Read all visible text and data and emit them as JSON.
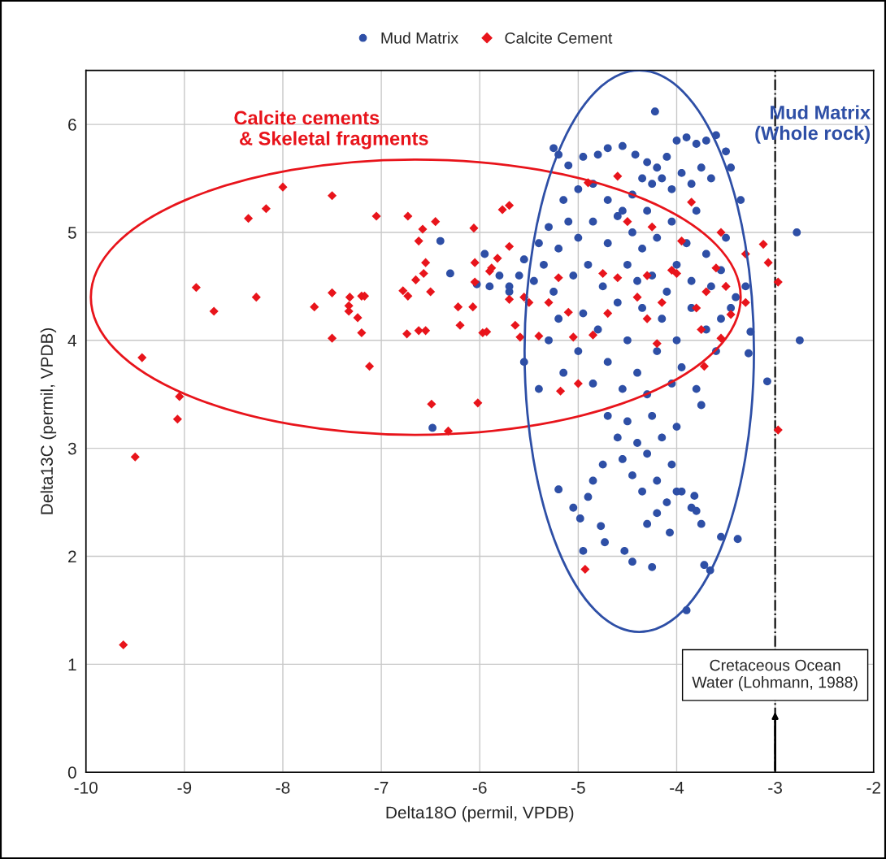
{
  "chart_data": {
    "type": "scatter",
    "xlabel": "Delta18O (permil, VPDB)",
    "ylabel": "Delta13C (permil, VPDB)",
    "xlim": [
      -10,
      -2
    ],
    "ylim": [
      0,
      6.5
    ],
    "xticks": [
      -10,
      -9,
      -8,
      -7,
      -6,
      -5,
      -4,
      -3,
      -2
    ],
    "yticks": [
      0,
      1,
      2,
      3,
      4,
      5,
      6
    ],
    "grid": true,
    "legend": "top",
    "annotations": [
      "Calcite cements\n & Skeletal fragments",
      "Mud Matrix\n(Whole rock)"
    ],
    "ref_lines": [
      {
        "axis": "x",
        "value": -3,
        "label": "Cretaceous Ocean\nWater (Lohmann, 1988)",
        "color": "#000000",
        "line_style": "dashdot"
      }
    ],
    "series": [
      {
        "name": "Mud Matrix",
        "color": "#2e4fa6",
        "marker": "circle",
        "x": [
          -5.25,
          -5.2,
          -5.1,
          -4.95,
          -4.8,
          -4.7,
          -4.55,
          -4.42,
          -4.3,
          -4.2,
          -4.1,
          -4.0,
          -3.9,
          -3.8,
          -3.7,
          -3.6,
          -3.5,
          -3.45,
          -3.35,
          -4.35,
          -4.25,
          -4.15,
          -4.05,
          -3.95,
          -3.85,
          -3.75,
          -3.65,
          -4.45,
          -5.15,
          -5.0,
          -4.85,
          -4.7,
          -4.55,
          -5.6,
          -5.55,
          -5.45,
          -5.4,
          -5.35,
          -5.3,
          -5.25,
          -5.2,
          -5.1,
          -5.05,
          -5.0,
          -4.9,
          -4.85,
          -4.75,
          -4.7,
          -4.6,
          -4.5,
          -4.45,
          -4.4,
          -4.35,
          -4.3,
          -4.25,
          -4.2,
          -4.1,
          -4.05,
          -4.0,
          -3.9,
          -3.85,
          -3.8,
          -3.7,
          -3.65,
          -3.55,
          -3.5,
          -3.4,
          -3.3,
          -3.45,
          -5.7,
          -5.8,
          -5.9,
          -5.55,
          -5.4,
          -5.3,
          -5.2,
          -5.15,
          -5.0,
          -4.95,
          -4.85,
          -4.8,
          -4.7,
          -4.6,
          -4.55,
          -4.5,
          -4.4,
          -4.35,
          -4.3,
          -4.2,
          -4.15,
          -4.05,
          -4.0,
          -3.95,
          -3.85,
          -3.8,
          -3.7,
          -3.6,
          -3.55,
          -3.75,
          -4.7,
          -4.6,
          -4.55,
          -4.5,
          -4.45,
          -4.4,
          -4.35,
          -4.3,
          -4.25,
          -4.2,
          -4.15,
          -4.1,
          -4.05,
          -4.0,
          -4.2,
          -4.3,
          -3.95,
          -3.85,
          -4.75,
          -4.9,
          -4.85,
          -4.22,
          -2.78,
          -2.75,
          -3.9,
          -3.66,
          -3.72,
          -3.38,
          -3.08,
          -3.27,
          -3.25,
          -6.4,
          -6.3,
          -6.48,
          -6.03,
          -5.95,
          -5.7,
          -5.2,
          -5.05,
          -4.95,
          -4.98,
          -4.77,
          -4.73,
          -4.45,
          -4.53,
          -4.25,
          -4.07,
          -3.8,
          -3.82,
          -4.0,
          -3.75,
          -3.55
        ],
        "values": [
          5.78,
          5.72,
          5.62,
          5.7,
          5.72,
          5.78,
          5.8,
          5.72,
          5.65,
          5.6,
          5.7,
          5.85,
          5.88,
          5.82,
          5.85,
          5.9,
          5.75,
          5.6,
          5.3,
          5.5,
          5.45,
          5.5,
          5.4,
          5.55,
          5.45,
          5.6,
          5.5,
          5.35,
          5.3,
          5.4,
          5.45,
          5.3,
          5.2,
          4.6,
          4.75,
          4.55,
          4.9,
          4.7,
          5.05,
          4.45,
          4.85,
          5.1,
          4.6,
          4.95,
          4.7,
          5.1,
          4.5,
          4.9,
          5.15,
          4.7,
          5.0,
          4.55,
          4.85,
          5.2,
          4.6,
          4.95,
          4.45,
          5.1,
          4.7,
          4.9,
          4.55,
          5.2,
          4.8,
          4.5,
          4.65,
          4.95,
          4.4,
          4.5,
          4.3,
          4.45,
          4.6,
          4.5,
          3.8,
          3.55,
          4.0,
          4.2,
          3.7,
          3.9,
          4.25,
          3.6,
          4.1,
          3.8,
          4.35,
          3.55,
          4.0,
          3.7,
          4.3,
          3.5,
          3.9,
          4.2,
          3.6,
          4.0,
          3.75,
          4.3,
          3.55,
          4.1,
          3.9,
          4.2,
          3.4,
          3.3,
          3.1,
          2.9,
          3.25,
          2.75,
          3.05,
          2.6,
          2.95,
          3.3,
          2.7,
          3.1,
          2.5,
          2.85,
          3.2,
          2.4,
          2.3,
          2.6,
          2.45,
          2.85,
          2.55,
          2.7,
          6.12,
          5.0,
          4.0,
          1.5,
          1.87,
          1.92,
          2.16,
          3.62,
          3.88,
          4.08,
          4.92,
          4.62,
          3.19,
          4.52,
          4.8,
          4.5,
          2.62,
          2.45,
          2.05,
          2.35,
          2.28,
          2.13,
          1.95,
          2.05,
          1.9,
          2.22,
          2.42,
          2.56,
          2.6,
          2.3,
          2.18
        ]
      },
      {
        "name": "Calcite Cement",
        "color": "#e8141b",
        "marker": "diamond",
        "x": [
          -9.62,
          -9.5,
          -9.43,
          -9.05,
          -9.07,
          -8.88,
          -8.7,
          -8.35,
          -8.27,
          -8.17,
          -8.0,
          -7.68,
          -7.5,
          -7.5,
          -7.5,
          -7.32,
          -7.33,
          -7.33,
          -7.2,
          -7.17,
          -7.24,
          -7.2,
          -7.12,
          -7.05,
          -6.78,
          -6.73,
          -6.73,
          -6.74,
          -6.65,
          -6.62,
          -6.62,
          -6.58,
          -6.57,
          -6.55,
          -6.55,
          -6.5,
          -6.49,
          -6.45,
          -6.32,
          -6.22,
          -6.2,
          -6.07,
          -6.06,
          -6.05,
          -6.05,
          -6.02,
          -5.97,
          -5.93,
          -5.9,
          -5.88,
          -5.82,
          -5.77,
          -5.7,
          -5.7,
          -5.7,
          -5.64,
          -5.59,
          -5.55,
          -5.5,
          -5.4,
          -5.3,
          -5.2,
          -5.18,
          -5.1,
          -5.05,
          -5.0,
          -4.93,
          -4.9,
          -4.75,
          -4.85,
          -4.6,
          -4.6,
          -4.7,
          -4.5,
          -4.4,
          -4.3,
          -4.3,
          -4.25,
          -4.15,
          -4.05,
          -4.2,
          -4.0,
          -3.95,
          -3.85,
          -3.8,
          -3.75,
          -3.7,
          -3.72,
          -3.6,
          -3.55,
          -3.55,
          -3.45,
          -3.5,
          -3.3,
          -3.3,
          -3.12,
          -3.07,
          -2.97,
          -2.97
        ],
        "values": [
          1.18,
          2.92,
          3.84,
          3.48,
          3.27,
          4.49,
          4.27,
          5.13,
          4.4,
          5.22,
          5.42,
          4.31,
          5.34,
          4.44,
          4.02,
          4.4,
          4.32,
          4.27,
          4.41,
          4.41,
          4.21,
          4.07,
          3.76,
          5.15,
          4.46,
          4.41,
          5.15,
          4.06,
          4.56,
          4.92,
          4.09,
          5.03,
          4.62,
          4.72,
          4.09,
          4.45,
          3.41,
          5.1,
          3.16,
          4.31,
          4.14,
          4.31,
          5.04,
          4.72,
          4.54,
          3.42,
          4.07,
          4.08,
          4.64,
          4.67,
          4.76,
          5.21,
          4.38,
          5.25,
          4.87,
          4.14,
          4.03,
          4.4,
          4.35,
          4.04,
          4.35,
          4.58,
          3.53,
          4.26,
          4.03,
          3.6,
          1.88,
          5.46,
          4.62,
          4.05,
          5.52,
          4.58,
          4.25,
          5.1,
          4.4,
          4.6,
          4.2,
          5.05,
          4.35,
          4.65,
          3.97,
          4.62,
          4.92,
          5.28,
          4.3,
          4.1,
          4.45,
          3.76,
          4.67,
          5.0,
          4.02,
          4.24,
          4.5,
          4.8,
          4.35,
          4.89,
          4.72,
          4.54,
          3.17
        ]
      }
    ]
  }
}
